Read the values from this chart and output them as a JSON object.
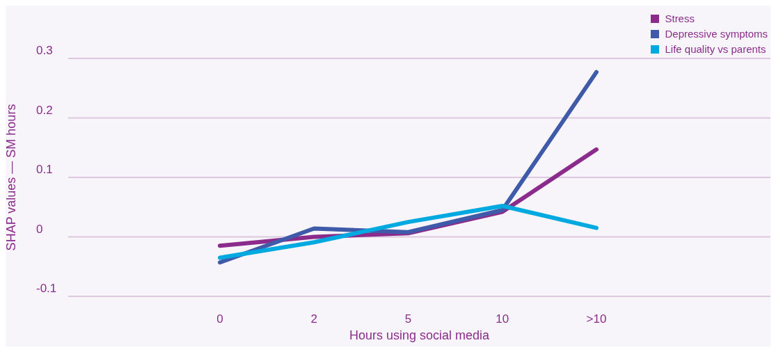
{
  "chart_data": {
    "type": "line",
    "xlabel": "Hours using social media",
    "ylabel": "SHAP values — SM hours",
    "categories": [
      "0",
      "2",
      "5",
      "10",
      ">10"
    ],
    "series": [
      {
        "name": "Stress",
        "color": "#8b2c8c",
        "values": [
          -0.015,
          0.0,
          0.006,
          0.042,
          0.147
        ]
      },
      {
        "name": "Depressive symptoms",
        "color": "#3f5aa8",
        "values": [
          -0.043,
          0.014,
          0.008,
          0.045,
          0.277
        ]
      },
      {
        "name": "Life quality vs parents",
        "color": "#00a9e0",
        "values": [
          -0.035,
          -0.009,
          0.025,
          0.052,
          0.015
        ]
      }
    ],
    "ylim": [
      -0.1,
      0.3
    ],
    "yticks": [
      -0.1,
      0,
      0.1,
      0.2,
      0.3
    ],
    "grid": "y",
    "legend": "top right",
    "marker": "none",
    "line_style": "solid"
  }
}
